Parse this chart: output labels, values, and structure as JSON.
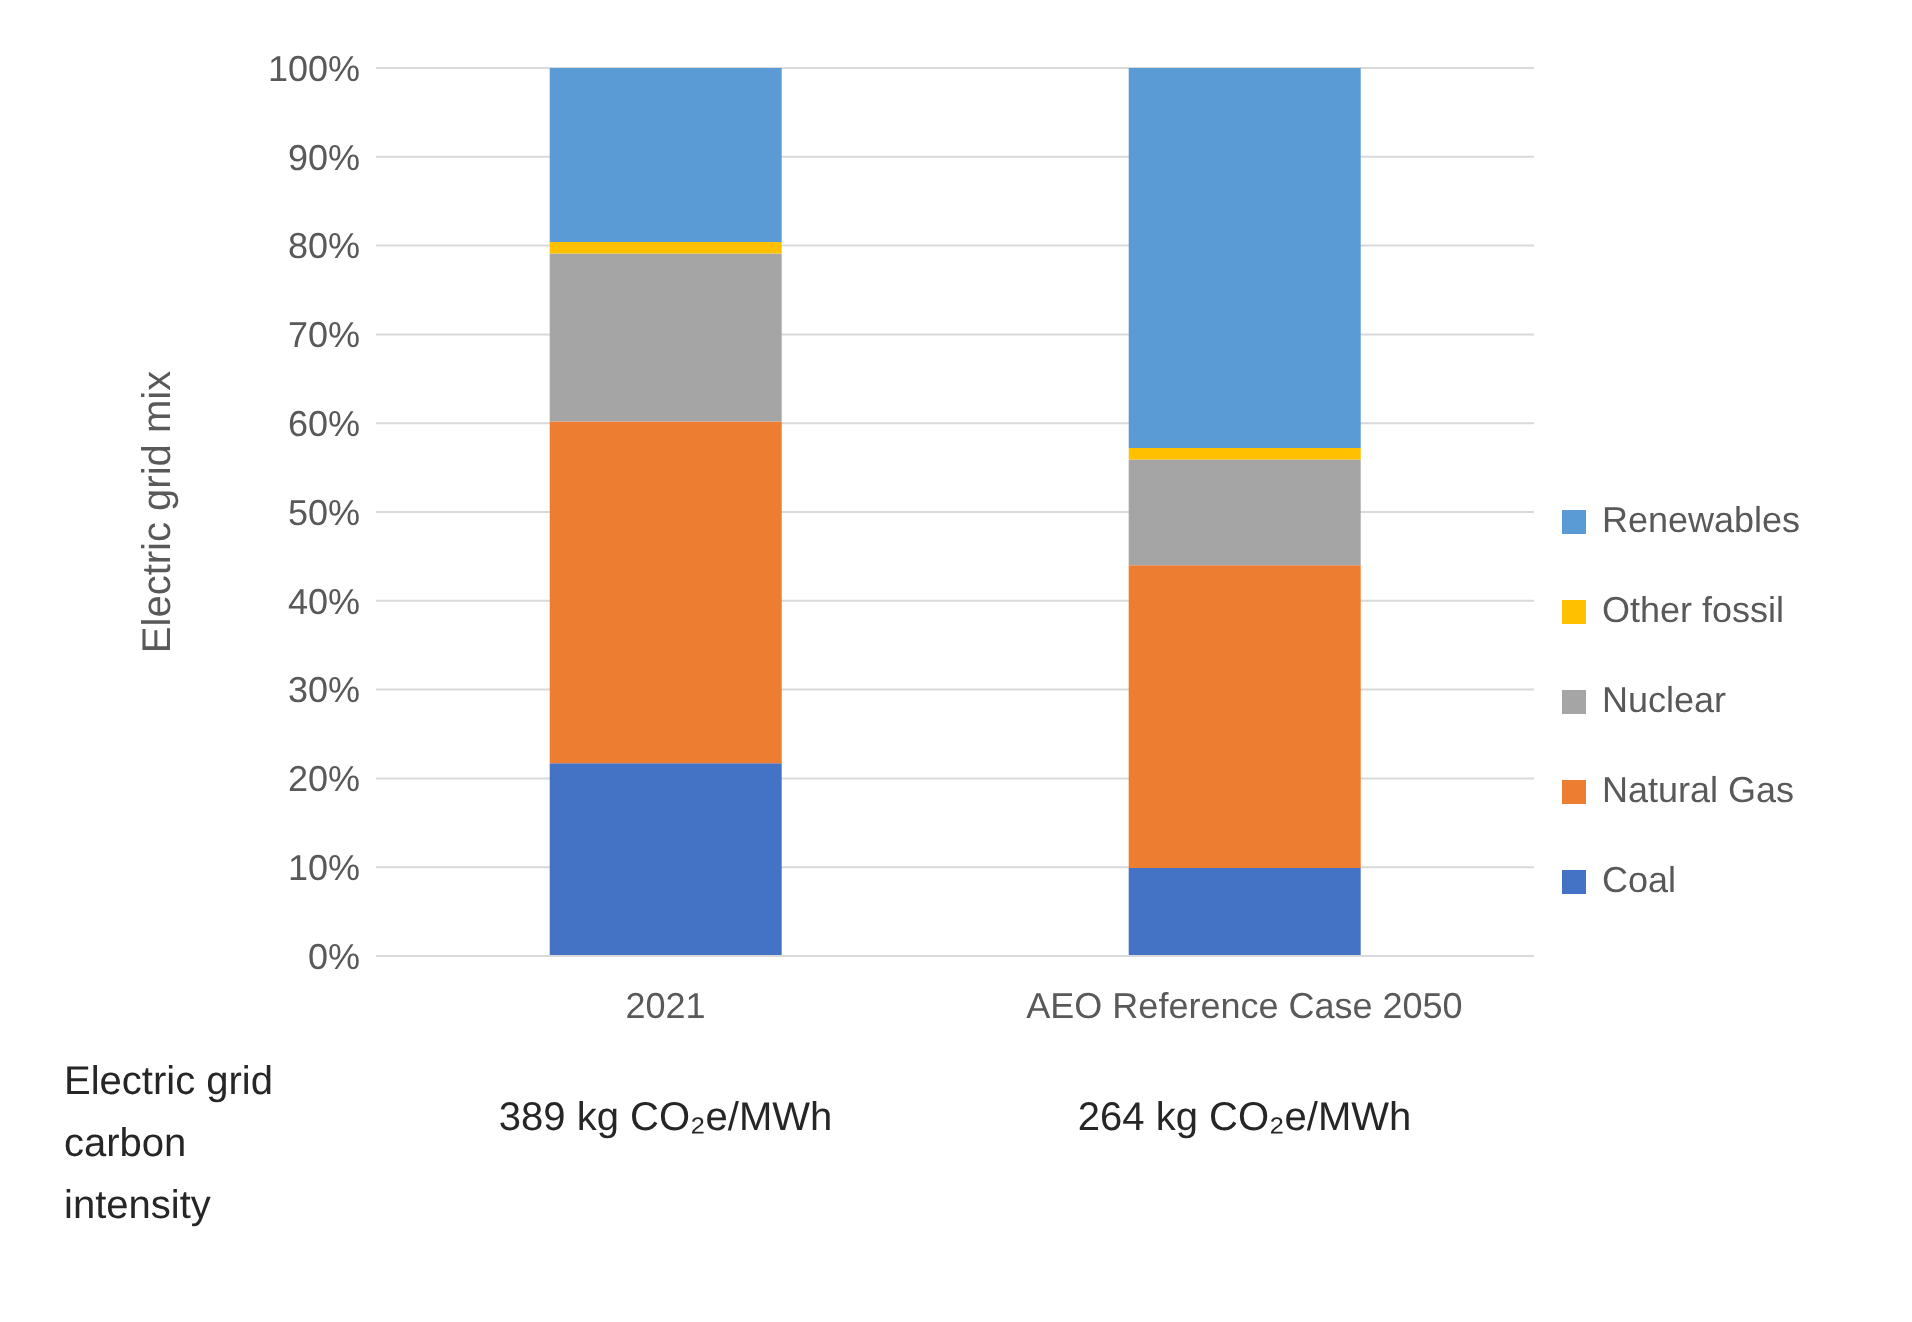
{
  "chart_data": {
    "type": "bar",
    "stacked": true,
    "ylabel": "Electric grid mix",
    "categories": [
      "2021",
      "AEO Reference Case 2050"
    ],
    "series": [
      {
        "name": "Coal",
        "color": "#4472c4",
        "values": [
          21.7,
          9.9
        ]
      },
      {
        "name": "Natural Gas",
        "color": "#ed7d31",
        "values": [
          38.5,
          34.1
        ]
      },
      {
        "name": "Nuclear",
        "color": "#a5a5a5",
        "values": [
          18.9,
          11.9
        ]
      },
      {
        "name": "Other fossil",
        "color": "#ffc000",
        "values": [
          1.3,
          1.3
        ]
      },
      {
        "name": "Renewables",
        "color": "#5b9bd5",
        "values": [
          19.6,
          42.8
        ]
      }
    ],
    "ylim": [
      0,
      100
    ],
    "yticks": [
      {
        "value": 0,
        "label": "0%"
      },
      {
        "value": 10,
        "label": "10%"
      },
      {
        "value": 20,
        "label": "20%"
      },
      {
        "value": 30,
        "label": "30%"
      },
      {
        "value": 40,
        "label": "40%"
      },
      {
        "value": 50,
        "label": "50%"
      },
      {
        "value": 60,
        "label": "60%"
      },
      {
        "value": 70,
        "label": "70%"
      },
      {
        "value": 80,
        "label": "80%"
      },
      {
        "value": 90,
        "label": "90%"
      },
      {
        "value": 100,
        "label": "100%"
      }
    ],
    "grid": "y",
    "legend": "right",
    "annotations": [
      "Electric grid carbon intensity",
      "389 kg CO₂e/MWh",
      "264 kg CO₂e/MWh"
    ]
  }
}
